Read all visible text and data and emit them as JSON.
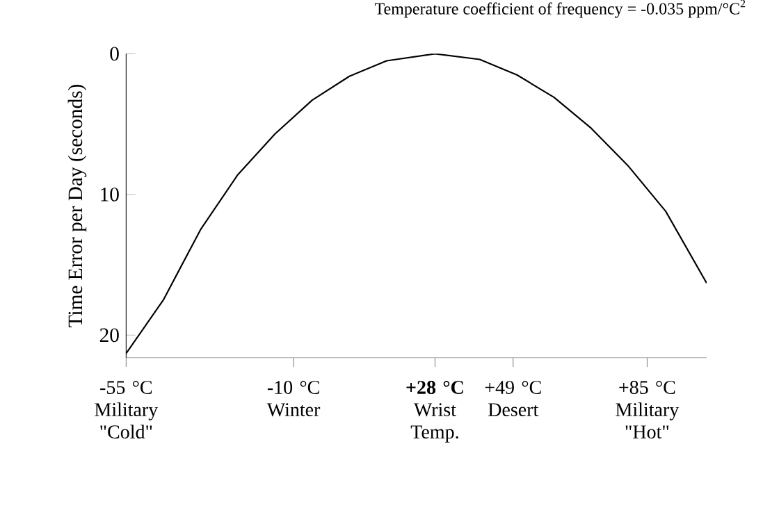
{
  "chart_data": {
    "type": "line",
    "title": "Temperature coefficient of frequency = -0.035 ppm/°C$^{2}$",
    "ylabel": "Time Error per Day (seconds)",
    "x": [
      -55,
      -45,
      -35,
      -25,
      -15,
      -5,
      5,
      15,
      28,
      40,
      50,
      60,
      70,
      80,
      90,
      101
    ],
    "values": [
      21.3,
      17.5,
      12.5,
      8.6,
      5.7,
      3.3,
      1.6,
      0.5,
      0,
      0.4,
      1.5,
      3.1,
      5.3,
      8.0,
      11.2,
      16.3
    ],
    "color": "#000000",
    "xlim": [
      -55,
      101
    ],
    "ylim": [
      21.6,
      0
    ],
    "xticks": [
      {
        "value": -55,
        "label": "-55 °C Military \"Cold\""
      },
      {
        "value": -10,
        "label": "-10 °C Winter"
      },
      {
        "value": 28,
        "label": "**+28 °C** Wrist Temp."
      },
      {
        "value": 49,
        "label": "+49 °C Desert"
      },
      {
        "value": 85,
        "label": "+85 °C Military \"Hot\""
      }
    ],
    "yticks": [
      0,
      10,
      20
    ],
    "grid": false,
    "legend": false,
    "marker": "none",
    "line_style": "solid"
  }
}
